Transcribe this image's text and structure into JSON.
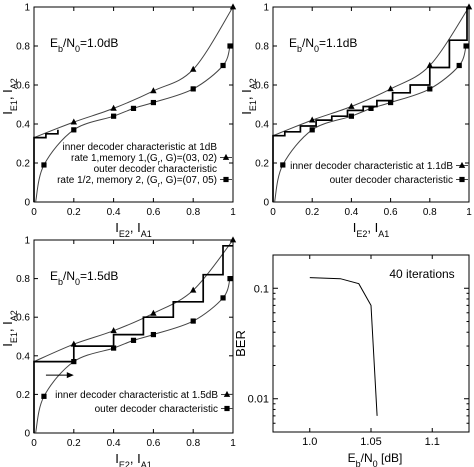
{
  "chart_data": [
    {
      "type": "line",
      "ebn0_label": "E_b/N_0=1.0dB",
      "xlabel": "I_E2, I_A1",
      "ylabel": "I_E1, I_A2",
      "xlim": [
        0,
        1
      ],
      "ylim": [
        0,
        1
      ],
      "x_ticks": [
        "0",
        "0.2",
        "0.4",
        "0.6",
        "0.8",
        "1"
      ],
      "y_ticks": [
        "0",
        "0.2",
        "0.4",
        "0.6",
        "0.8",
        "1"
      ],
      "legend": {
        "placement": "bottom-right",
        "entries": [
          {
            "lines": [
              "inner decoder characteristic at 1dB",
              "rate 1,memory 1,(G_r, G)=(03, 02)"
            ],
            "marker": "triangle"
          },
          {
            "lines": [
              "outer decoder characteristic",
              "rate 1/2, memory 2, (G_r, G)=(07, 05)"
            ],
            "marker": "square"
          }
        ]
      },
      "series": [
        {
          "name": "inner decoder characteristic at 1dB",
          "marker": "triangle",
          "x": [
            0,
            0.2,
            0.4,
            0.6,
            0.8,
            1.0
          ],
          "y": [
            0.33,
            0.41,
            0.48,
            0.57,
            0.68,
            1.0
          ]
        },
        {
          "name": "outer decoder characteristic",
          "marker": "square",
          "x": [
            0.008,
            0.05,
            0.2,
            0.4,
            0.5,
            0.6,
            0.8,
            0.95,
            0.985
          ],
          "y": [
            0.0,
            0.19,
            0.37,
            0.44,
            0.48,
            0.51,
            0.58,
            0.7,
            0.8
          ]
        },
        {
          "name": "",
          "role": "trajectory",
          "x": [
            0,
            0,
            0.06,
            0.06,
            0.12,
            0.12
          ],
          "y": [
            0,
            0.33,
            0.33,
            0.35,
            0.35,
            0.37
          ]
        }
      ]
    },
    {
      "type": "line",
      "ebn0_label": "E_b/N_0=1.1dB",
      "xlabel": "I_E2, I_A1",
      "ylabel": "I_E1, I_A2",
      "xlim": [
        0,
        1
      ],
      "ylim": [
        0,
        1
      ],
      "x_ticks": [
        "0",
        "0.2",
        "0.4",
        "0.6",
        "0.8",
        "1"
      ],
      "y_ticks": [
        "0",
        "0.2",
        "0.4",
        "0.6",
        "0.8",
        "1"
      ],
      "legend": {
        "placement": "bottom-right",
        "entries": [
          {
            "lines": [
              "inner decoder characteristic at 1.1dB"
            ],
            "marker": "triangle"
          },
          {
            "lines": [
              "outer decoder characteristic"
            ],
            "marker": "square"
          }
        ]
      },
      "series": [
        {
          "name": "inner decoder characteristic at 1.1dB",
          "marker": "triangle",
          "x": [
            0,
            0.2,
            0.4,
            0.6,
            0.8,
            1.0
          ],
          "y": [
            0.34,
            0.42,
            0.49,
            0.58,
            0.7,
            1.0
          ]
        },
        {
          "name": "outer decoder characteristic",
          "marker": "square",
          "x": [
            0.008,
            0.05,
            0.2,
            0.4,
            0.5,
            0.6,
            0.8,
            0.95,
            0.985
          ],
          "y": [
            0.0,
            0.19,
            0.37,
            0.44,
            0.48,
            0.51,
            0.58,
            0.7,
            0.8
          ]
        },
        {
          "name": "",
          "role": "trajectory",
          "x": [
            0,
            0,
            0.06,
            0.06,
            0.14,
            0.14,
            0.22,
            0.22,
            0.3,
            0.3,
            0.38,
            0.38,
            0.46,
            0.46,
            0.53,
            0.53,
            0.61,
            0.61,
            0.7,
            0.7,
            0.8,
            0.8,
            0.9,
            0.9,
            0.99,
            0.99
          ],
          "y": [
            0,
            0.34,
            0.34,
            0.36,
            0.36,
            0.39,
            0.39,
            0.42,
            0.42,
            0.44,
            0.44,
            0.47,
            0.47,
            0.49,
            0.49,
            0.52,
            0.52,
            0.56,
            0.56,
            0.6,
            0.6,
            0.69,
            0.69,
            0.83,
            0.83,
            1.0
          ]
        }
      ]
    },
    {
      "type": "line",
      "ebn0_label": "E_b/N_0=1.5dB",
      "xlabel": "I_E2, I_A1",
      "ylabel": "I_E1, I_A2",
      "xlim": [
        0,
        1
      ],
      "ylim": [
        0,
        1
      ],
      "x_ticks": [
        "0",
        "0.2",
        "0.4",
        "0.6",
        "0.8",
        "1"
      ],
      "y_ticks": [
        "0",
        "0.2",
        "0.4",
        "0.6",
        "0.8",
        "1"
      ],
      "legend": {
        "placement": "bottom-right",
        "entries": [
          {
            "lines": [
              "inner decoder characteristic at 1.5dB"
            ],
            "marker": "triangle"
          },
          {
            "lines": [
              "outer decoder characteristic"
            ],
            "marker": "square"
          }
        ]
      },
      "series": [
        {
          "name": "inner decoder characteristic at 1.5dB",
          "marker": "triangle",
          "x": [
            0,
            0.2,
            0.4,
            0.6,
            0.8,
            1.0
          ],
          "y": [
            0.37,
            0.46,
            0.53,
            0.62,
            0.74,
            1.0
          ]
        },
        {
          "name": "outer decoder characteristic",
          "marker": "square",
          "x": [
            0.008,
            0.05,
            0.2,
            0.4,
            0.5,
            0.6,
            0.8,
            0.95,
            0.985
          ],
          "y": [
            0.0,
            0.19,
            0.37,
            0.44,
            0.48,
            0.51,
            0.58,
            0.7,
            0.8
          ]
        },
        {
          "name": "",
          "role": "trajectory",
          "x": [
            0,
            0,
            0.2,
            0.2,
            0.4,
            0.4,
            0.55,
            0.55,
            0.7,
            0.7,
            0.85,
            0.85,
            0.95,
            0.95,
            1.0
          ],
          "y": [
            0,
            0.37,
            0.37,
            0.45,
            0.45,
            0.51,
            0.51,
            0.6,
            0.6,
            0.68,
            0.68,
            0.82,
            0.82,
            0.97,
            0.97
          ]
        }
      ],
      "annotation_arrow": {
        "x_from": 0.06,
        "x_to": 0.2,
        "y": 0.3
      }
    },
    {
      "type": "line",
      "annotation": "40 iterations",
      "xlabel": "E_b/N_0 [dB]",
      "ylabel": "BER",
      "xlim": [
        0.97,
        1.13
      ],
      "ylim": [
        0.005,
        0.2
      ],
      "y_scale": "log",
      "x_ticks": [
        1.0,
        1.05,
        1.1
      ],
      "x_tick_labels": [
        "1.0",
        "1.05",
        "1.1"
      ],
      "y_ticks": [
        0.1,
        0.01
      ],
      "y_tick_labels": [
        "0.1",
        "0.01"
      ],
      "series": [
        {
          "name": "",
          "x": [
            1.0,
            1.025,
            1.04,
            1.05,
            1.055
          ],
          "y": [
            0.125,
            0.122,
            0.11,
            0.07,
            0.007
          ]
        }
      ]
    }
  ]
}
